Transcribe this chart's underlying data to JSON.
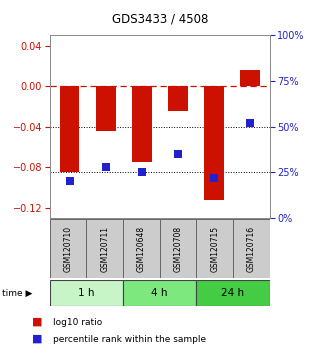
{
  "title": "GDS3433 / 4508",
  "samples": [
    "GSM120710",
    "GSM120711",
    "GSM120648",
    "GSM120708",
    "GSM120715",
    "GSM120716"
  ],
  "log10_ratio": [
    -0.085,
    -0.044,
    -0.075,
    -0.025,
    -0.113,
    0.016
  ],
  "percentile_rank": [
    20,
    28,
    25,
    35,
    22,
    52
  ],
  "time_groups": [
    {
      "label": "1 h",
      "start": 0,
      "end": 2,
      "color": "#c8f5c8"
    },
    {
      "label": "4 h",
      "start": 2,
      "end": 4,
      "color": "#7de87d"
    },
    {
      "label": "24 h",
      "start": 4,
      "end": 6,
      "color": "#44cc44"
    }
  ],
  "bar_color": "#cc1100",
  "dot_color": "#2222cc",
  "left_axis_color": "#cc1100",
  "right_axis_color": "#2222cc",
  "ylim_left": [
    -0.13,
    0.05
  ],
  "ylim_right": [
    0,
    100
  ],
  "left_ticks": [
    0.04,
    0,
    -0.04,
    -0.08,
    -0.12
  ],
  "right_ticks": [
    100,
    75,
    50,
    25,
    0
  ],
  "sample_box_color": "#cccccc",
  "sample_box_edge": "#666666",
  "time_box_edge": "#444444",
  "bar_width": 0.55,
  "dot_size": 28,
  "background_color": "#ffffff",
  "plot_bg_color": "#ffffff"
}
